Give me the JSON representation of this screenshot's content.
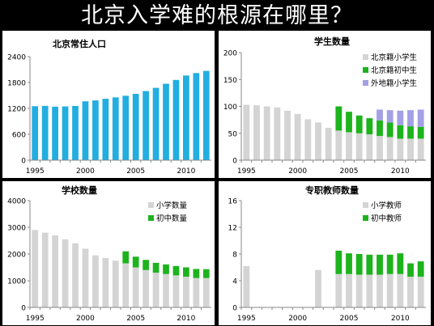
{
  "page_title": "北京入学难的根源在哪里？",
  "colors": {
    "background": "#000000",
    "blue": "#22aee0",
    "gray": "#d4d4d4",
    "green": "#1db31d",
    "purple": "#a3a0e6"
  },
  "chart_data": [
    {
      "id": "population",
      "type": "bar",
      "title": "北京常住人口",
      "ylim": [
        0,
        2400
      ],
      "yticks": [
        0,
        600,
        1200,
        1800,
        2400
      ],
      "xtick_labels": [
        "1995",
        "2000",
        "2005",
        "2010"
      ],
      "x": [
        1995,
        1996,
        1997,
        1998,
        1999,
        2000,
        2001,
        2002,
        2003,
        2004,
        2005,
        2006,
        2007,
        2008,
        2009,
        2010,
        2011,
        2012
      ],
      "series": [
        {
          "key": "pop",
          "color": "#22aee0",
          "values": [
            1251,
            1259,
            1240,
            1246,
            1257,
            1364,
            1385,
            1423,
            1456,
            1493,
            1538,
            1601,
            1676,
            1771,
            1860,
            1962,
            2019,
            2069
          ]
        }
      ],
      "legend": null
    },
    {
      "id": "students",
      "type": "stacked_bar",
      "title": "学生数量",
      "ylim": [
        0,
        200
      ],
      "yticks": [
        0,
        50,
        100,
        150,
        200
      ],
      "xtick_labels": [
        "1995",
        "2000",
        "2005",
        "2010"
      ],
      "x": [
        1995,
        1996,
        1997,
        1998,
        1999,
        2000,
        2001,
        2002,
        2003,
        2004,
        2005,
        2006,
        2007,
        2008,
        2009,
        2010,
        2011,
        2012
      ],
      "series": [
        {
          "key": "s1",
          "name": "北京籍小学生",
          "color": "#d4d4d4",
          "values": [
            103,
            102,
            100,
            98,
            92,
            86,
            76,
            70,
            60,
            55,
            52,
            50,
            48,
            45,
            43,
            40,
            40,
            40
          ]
        },
        {
          "key": "s2",
          "name": "北京籍初中生",
          "color": "#1db31d",
          "values": [
            null,
            null,
            null,
            null,
            null,
            null,
            null,
            null,
            null,
            45,
            38,
            33,
            30,
            29,
            27,
            25,
            23,
            22
          ]
        },
        {
          "key": "s3",
          "name": "外地籍小学生",
          "color": "#a3a0e6",
          "values": [
            null,
            null,
            null,
            null,
            null,
            null,
            null,
            null,
            null,
            null,
            null,
            null,
            null,
            20,
            23,
            27,
            30,
            32
          ]
        }
      ],
      "legend": "top-right"
    },
    {
      "id": "schools",
      "type": "stacked_bar",
      "title": "学校数量",
      "ylim": [
        0,
        4000
      ],
      "yticks": [
        0,
        1000,
        2000,
        3000,
        4000
      ],
      "xtick_labels": [
        "1995",
        "2000",
        "2005",
        "2010"
      ],
      "x": [
        1995,
        1996,
        1997,
        1998,
        1999,
        2000,
        2001,
        2002,
        2003,
        2004,
        2005,
        2006,
        2007,
        2008,
        2009,
        2010,
        2011,
        2012
      ],
      "series": [
        {
          "key": "k1",
          "name": "小学数量",
          "color": "#d4d4d4",
          "values": [
            2900,
            2800,
            2700,
            2550,
            2400,
            2200,
            1950,
            1850,
            1750,
            1650,
            1500,
            1400,
            1300,
            1250,
            1200,
            1150,
            1100,
            1100
          ]
        },
        {
          "key": "k2",
          "name": "初中数量",
          "color": "#1db31d",
          "values": [
            null,
            null,
            null,
            null,
            null,
            null,
            null,
            null,
            null,
            450,
            400,
            380,
            370,
            360,
            350,
            350,
            340,
            330
          ]
        }
      ],
      "legend": "top-right"
    },
    {
      "id": "teachers",
      "type": "stacked_bar",
      "title": "专职教师数量",
      "ylim": [
        0,
        16
      ],
      "yticks": [
        0,
        4,
        8,
        12,
        16
      ],
      "xtick_labels": [
        "1995",
        "2000",
        "2005",
        "2010"
      ],
      "x": [
        1995,
        1996,
        1997,
        1998,
        1999,
        2000,
        2001,
        2002,
        2003,
        2004,
        2005,
        2006,
        2007,
        2008,
        2009,
        2010,
        2011,
        2012
      ],
      "series": [
        {
          "key": "t1",
          "name": "小学教师",
          "color": "#d4d4d4",
          "values": [
            6.2,
            0,
            0,
            0,
            0,
            0,
            0,
            5.6,
            0,
            5.0,
            5.0,
            4.9,
            4.9,
            4.9,
            5.0,
            5.0,
            4.6,
            4.6
          ]
        },
        {
          "key": "t2",
          "name": "初中教师",
          "color": "#1db31d",
          "values": [
            null,
            null,
            null,
            null,
            null,
            null,
            null,
            null,
            null,
            3.5,
            3.1,
            3.1,
            3.0,
            3.0,
            2.9,
            3.1,
            2.0,
            2.3
          ]
        }
      ],
      "legend": "top-right"
    }
  ]
}
